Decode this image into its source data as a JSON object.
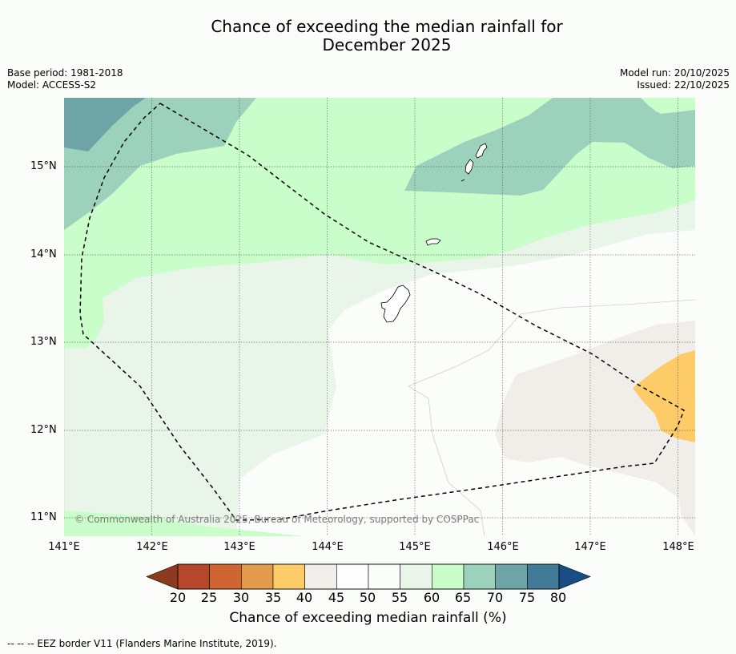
{
  "title": {
    "line1": "Chance of exceeding the median rainfall for",
    "line2": "December 2025"
  },
  "meta": {
    "base_period": "Base period: 1981-2018",
    "model": "Model: ACCESS-S2",
    "model_run": "Model run: 20/10/2025",
    "issued": "Issued: 22/10/2025"
  },
  "map": {
    "lat_labels": [
      "15°N",
      "14°N",
      "13°N",
      "12°N",
      "11°N"
    ],
    "lon_labels": [
      "141°E",
      "142°E",
      "143°E",
      "144°E",
      "145°E",
      "146°E",
      "147°E",
      "148°E"
    ],
    "credit": "© Commonwealth of Australia 2025, Bureau of Meteorology, supported by COSPPac",
    "colors": {
      "land": "#ffffff",
      "eez_line": "#000000",
      "grid": "#555555"
    }
  },
  "colorbar": {
    "label": "Chance of exceeding median rainfall (%)",
    "ticks": [
      "20",
      "25",
      "30",
      "35",
      "40",
      "45",
      "50",
      "55",
      "60",
      "65",
      "70",
      "75",
      "80"
    ],
    "colors": {
      "lt20": "#8e3a1f",
      "c20_25": "#b5482a",
      "c25_30": "#cf6632",
      "c30_35": "#e29a4c",
      "c35_40": "#fdcb68",
      "c40_45": "#f1ede8",
      "c45_50": "#fdfefd",
      "c50_55": "#fbfdfb",
      "c55_60": "#eaf5ea",
      "c60_65": "#c9fdc9",
      "c65_70": "#9cd1bb",
      "c70_75": "#6fa4a7",
      "c75_80": "#427b97",
      "gt80": "#184e84"
    }
  },
  "footnote": "--  --  -- EEZ border V11 (Flanders Marine Institute, 2019)."
}
